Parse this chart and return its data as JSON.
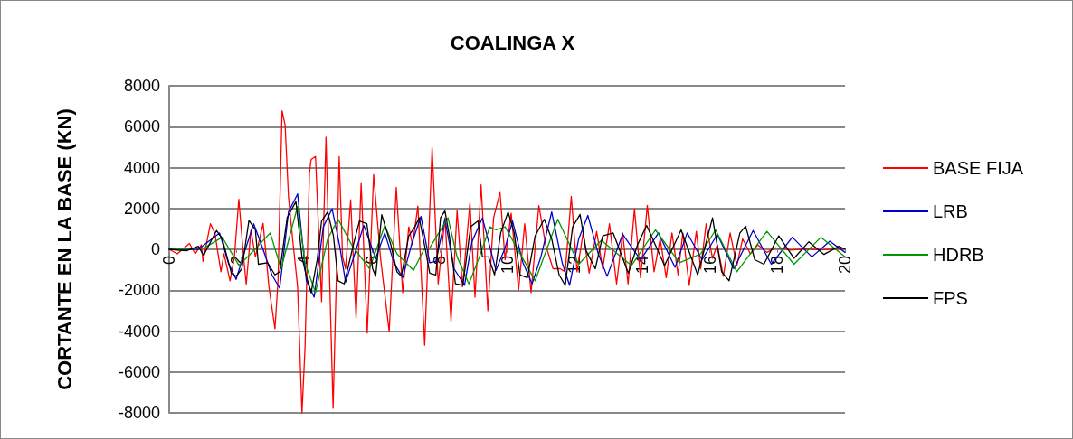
{
  "chart_data": {
    "type": "line",
    "title": "COALINGA X",
    "ylabel": "CORTANTE EN LA BASE (KN)",
    "xlim": [
      0,
      20
    ],
    "xticks": [
      0,
      2,
      4,
      6,
      8,
      10,
      12,
      14,
      16,
      18,
      20
    ],
    "ylim": [
      -8000,
      8000
    ],
    "yticks": [
      -8000,
      -6000,
      -4000,
      -2000,
      0,
      2000,
      4000,
      6000,
      8000
    ],
    "grid": "y",
    "legend": "right",
    "marker": "none",
    "line_style": "solid",
    "series": [
      {
        "name": "BASE FIJA",
        "color": "#ff0000",
        "x": [
          0,
          0.24,
          0.6,
          0.77,
          0.95,
          1.0,
          1.22,
          1.35,
          1.53,
          1.62,
          1.8,
          1.93,
          2.06,
          2.2,
          2.28,
          2.42,
          2.55,
          2.78,
          2.95,
          3.13,
          3.22,
          3.34,
          3.43,
          3.53,
          3.67,
          3.8,
          3.93,
          4.02,
          4.15,
          4.2,
          4.33,
          4.51,
          4.64,
          4.73,
          4.85,
          4.94,
          5.03,
          5.13,
          5.22,
          5.37,
          5.53,
          5.68,
          5.86,
          6.05,
          6.25,
          6.51,
          6.72,
          6.91,
          7.09,
          7.2,
          7.36,
          7.56,
          7.78,
          7.96,
          8.16,
          8.34,
          8.52,
          8.68,
          8.9,
          9.05,
          9.23,
          9.43,
          9.6,
          9.79,
          9.94,
          10.12,
          10.34,
          10.52,
          10.71,
          10.94,
          11.14,
          11.36,
          11.57,
          11.72,
          11.9,
          12.07,
          12.25,
          12.43,
          12.65,
          12.83,
          13.03,
          13.24,
          13.42,
          13.58,
          13.77,
          13.95,
          14.15,
          14.35,
          14.53,
          14.71,
          14.88,
          15.06,
          15.2,
          15.39,
          15.6,
          15.73,
          15.89,
          16.08,
          16.22,
          16.4,
          16.6,
          16.8,
          16.97,
          17.2,
          17.42,
          17.69,
          17.95,
          18.4,
          18.84,
          19.29,
          19.95
        ],
        "values": [
          0,
          -220,
          290,
          -220,
          220,
          -590,
          1250,
          800,
          -1100,
          -220,
          -1540,
          -370,
          2450,
          -370,
          -1700,
          950,
          -370,
          1270,
          -1830,
          -3880,
          -1540,
          6780,
          6080,
          2560,
          220,
          -1830,
          -8000,
          -4800,
          3740,
          4400,
          4540,
          -2560,
          5490,
          -370,
          -7770,
          -1830,
          4540,
          -370,
          -950,
          2420,
          -3370,
          3220,
          -4100,
          3660,
          -370,
          -4030,
          3030,
          -2120,
          1100,
          220,
          2120,
          -4690,
          4980,
          -1690,
          1540,
          -3520,
          1900,
          -1830,
          2270,
          -2340,
          3150,
          -3000,
          1540,
          2780,
          -510,
          1760,
          -1980,
          1250,
          -2120,
          2140,
          220,
          -950,
          -950,
          -1100,
          2590,
          -1100,
          800,
          -1170,
          880,
          -950,
          1250,
          -1690,
          800,
          -1690,
          1980,
          -1390,
          2150,
          -1100,
          510,
          -1390,
          800,
          -1250,
          800,
          -1760,
          880,
          -950,
          1250,
          -440,
          220,
          -1320,
          800,
          -800,
          510,
          -220,
          220,
          -150,
          70,
          -40,
          30,
          -30,
          40
        ]
      },
      {
        "name": "LRB",
        "color": "#0000cc",
        "x": [
          0,
          0.86,
          1.49,
          1.75,
          1.98,
          2.24,
          2.5,
          2.73,
          3.04,
          3.27,
          3.53,
          3.8,
          4.06,
          4.29,
          4.56,
          4.82,
          5.04,
          5.22,
          5.49,
          5.76,
          6.11,
          6.38,
          6.65,
          6.91,
          7.18,
          7.45,
          7.71,
          7.89,
          8.16,
          8.43,
          8.74,
          8.96,
          9.27,
          9.67,
          9.94,
          10.16,
          10.47,
          10.74,
          11.0,
          11.32,
          11.63,
          11.85,
          12.12,
          12.39,
          12.7,
          12.96,
          13.42,
          13.95,
          14.48,
          14.97,
          15.33,
          15.77,
          16.22,
          16.71,
          17.28,
          17.82,
          18.44,
          19.02,
          19.55,
          20
        ],
        "values": [
          0,
          0,
          800,
          -660,
          -1470,
          -70,
          1250,
          220,
          -1250,
          -1900,
          1830,
          2710,
          -1540,
          -2340,
          1100,
          1980,
          220,
          -1610,
          -220,
          1170,
          -440,
          800,
          -660,
          -1390,
          290,
          1610,
          -660,
          -590,
          1470,
          -950,
          -1760,
          370,
          1540,
          -1030,
          70,
          1390,
          -660,
          -1690,
          -370,
          1830,
          -660,
          -1760,
          510,
          1660,
          -220,
          -1320,
          730,
          -510,
          800,
          -880,
          800,
          -510,
          730,
          -950,
          920,
          -730,
          590,
          -370,
          400,
          -150
        ]
      },
      {
        "name": "HDRB",
        "color": "#009900",
        "x": [
          0,
          1.04,
          1.57,
          2.06,
          2.37,
          2.99,
          3.31,
          3.8,
          4.02,
          4.33,
          4.69,
          5.0,
          5.4,
          5.93,
          6.38,
          6.74,
          7.23,
          7.54,
          7.71,
          8.25,
          8.52,
          8.87,
          9.18,
          9.49,
          9.67,
          9.94,
          10.29,
          10.83,
          11.5,
          12.12,
          12.79,
          13.68,
          14.39,
          15.1,
          15.73,
          16.17,
          16.8,
          17.69,
          18.49,
          19.29,
          20
        ],
        "values": [
          0,
          70,
          590,
          -780,
          -290,
          800,
          -950,
          2100,
          -660,
          -2120,
          510,
          1470,
          220,
          -950,
          1170,
          -220,
          -1030,
          0,
          70,
          1540,
          -370,
          -1690,
          -370,
          1100,
          950,
          1100,
          70,
          -1540,
          1470,
          -730,
          440,
          -800,
          950,
          -660,
          -220,
          950,
          -1100,
          880,
          -730,
          590,
          -370
        ]
      },
      {
        "name": "FPS",
        "color": "#000000",
        "x": [
          0,
          0.51,
          0.86,
          1.02,
          1.4,
          1.57,
          1.84,
          1.98,
          2.15,
          2.36,
          2.55,
          2.64,
          2.91,
          3.13,
          3.27,
          3.49,
          3.75,
          3.93,
          4.06,
          4.2,
          4.38,
          4.51,
          4.69,
          4.86,
          5.0,
          5.18,
          5.45,
          5.63,
          5.85,
          6.02,
          6.11,
          6.29,
          6.56,
          6.74,
          6.87,
          7.09,
          7.27,
          7.4,
          7.58,
          7.71,
          7.89,
          8.03,
          8.16,
          8.29,
          8.47,
          8.69,
          8.92,
          9.14,
          9.27,
          9.45,
          9.63,
          9.81,
          10.03,
          10.21,
          10.38,
          10.6,
          10.83,
          11.1,
          11.32,
          11.54,
          11.72,
          11.94,
          12.16,
          12.34,
          12.61,
          12.83,
          13.14,
          13.59,
          13.86,
          14.13,
          14.66,
          15.15,
          15.64,
          16.08,
          16.35,
          16.57,
          16.89,
          17.06,
          17.33,
          17.6,
          18.04,
          18.49,
          18.93,
          19.38,
          19.82,
          20
        ],
        "values": [
          0,
          -70,
          150,
          -290,
          920,
          510,
          -1170,
          -1320,
          -950,
          1420,
          950,
          -730,
          -660,
          -1250,
          -1100,
          1540,
          2340,
          -370,
          -1320,
          -2120,
          -510,
          1390,
          1830,
          660,
          -1540,
          -1690,
          220,
          1390,
          1250,
          -950,
          -1320,
          1690,
          220,
          -1100,
          -1320,
          660,
          1100,
          1540,
          0,
          -1170,
          -1250,
          1540,
          1880,
          660,
          -1690,
          -1760,
          1100,
          1390,
          -370,
          -370,
          -1250,
          800,
          1830,
          800,
          -1250,
          -1390,
          660,
          1470,
          510,
          -1250,
          -1760,
          1100,
          1710,
          -70,
          -950,
          660,
          800,
          -1170,
          220,
          1170,
          -800,
          950,
          -1250,
          1540,
          -1100,
          -1540,
          800,
          1130,
          -510,
          -730,
          660,
          -440,
          370,
          -250,
          150,
          0
        ]
      }
    ]
  }
}
